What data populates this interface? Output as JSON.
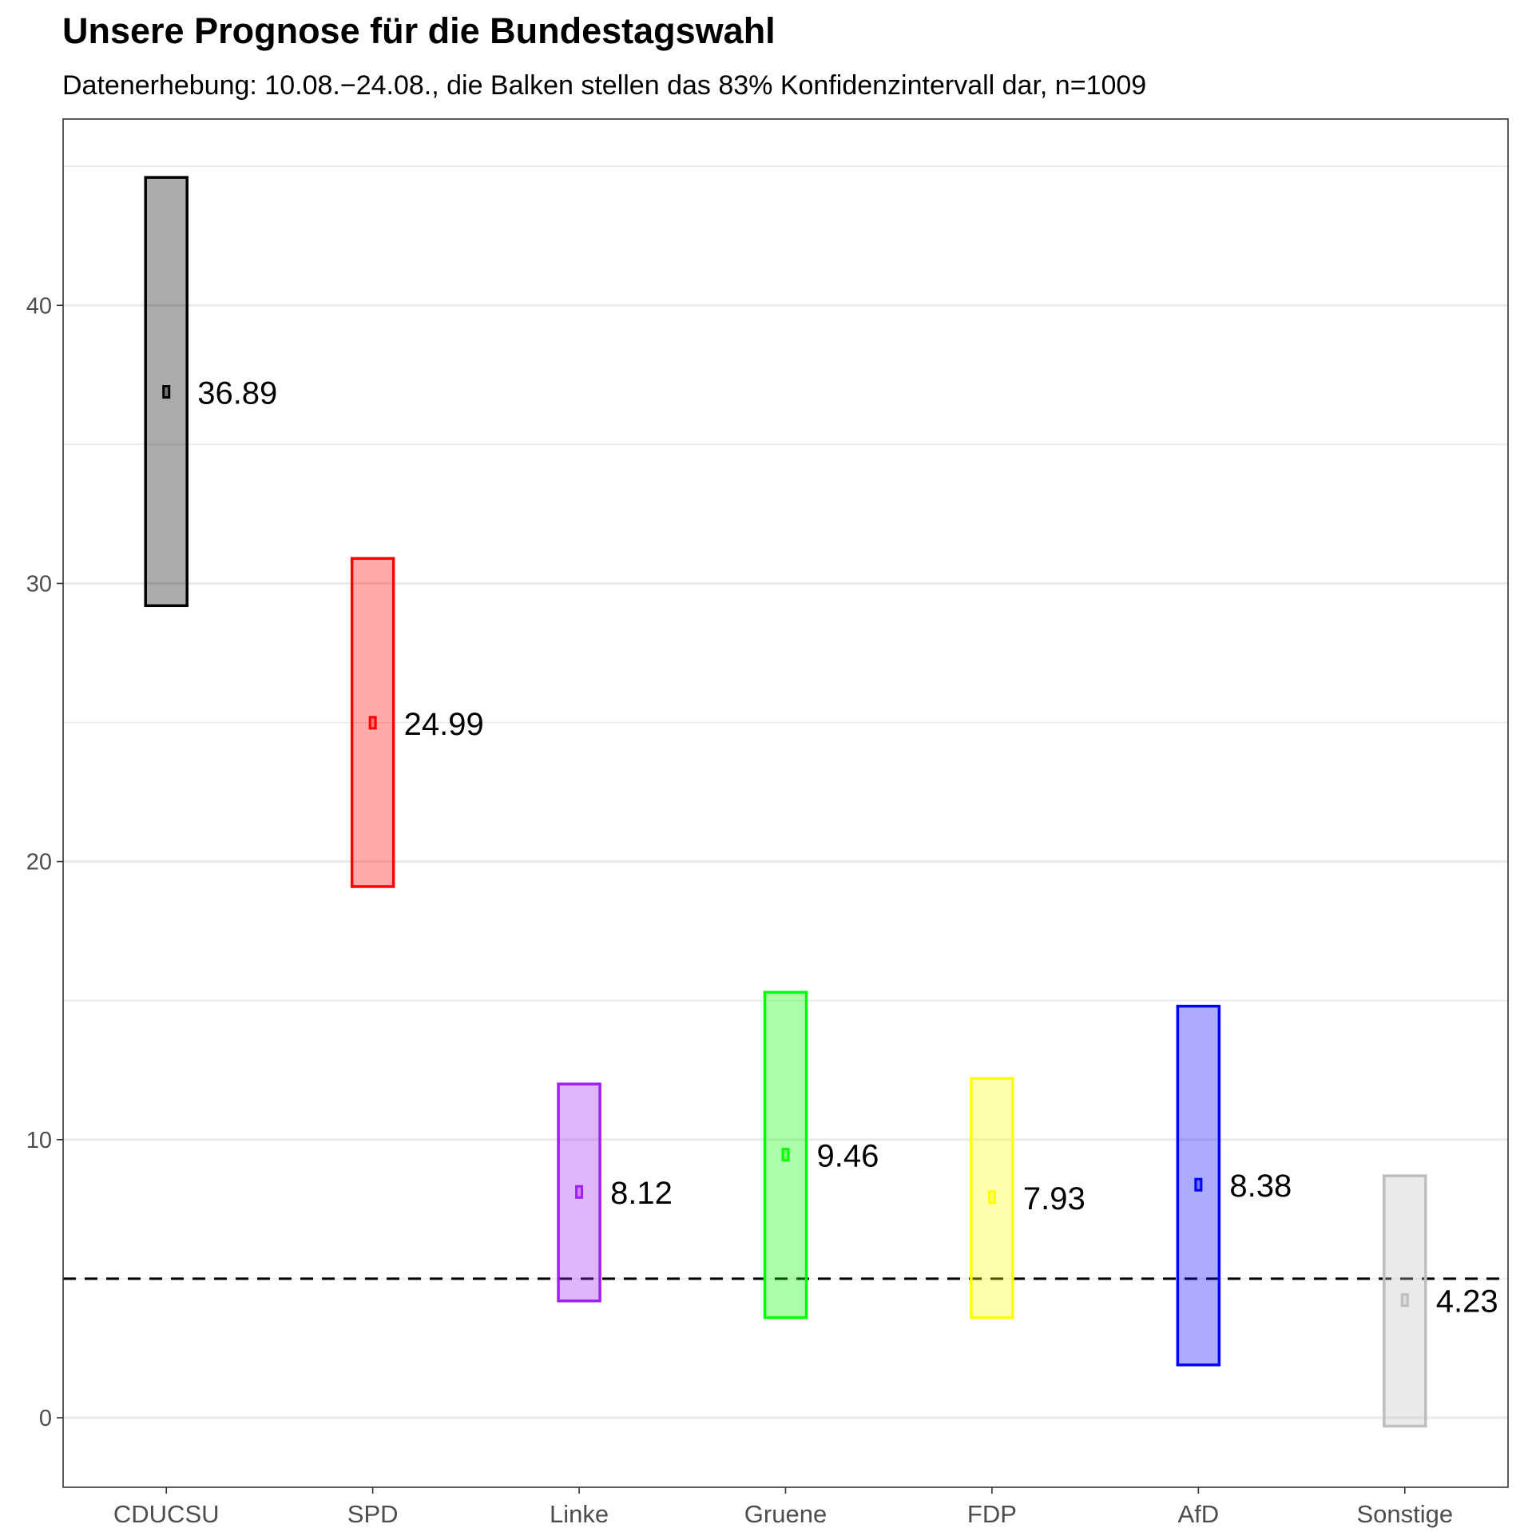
{
  "chart_data": {
    "type": "interval",
    "title": "Unsere Prognose für die Bundestagswahl",
    "subtitle": "Datenerhebung: 10.08.−24.08., die Balken stellen das 83% Konfidenzintervall dar, n=1009",
    "xlabel": "",
    "ylabel": "",
    "ylim": [
      -2.5,
      46.7
    ],
    "yticks": [
      0,
      10,
      20,
      30,
      40
    ],
    "grid": true,
    "threshold_line": 5,
    "categories": [
      "CDUCSU",
      "SPD",
      "Linke",
      "Gruene",
      "FDP",
      "AfD",
      "Sonstige"
    ],
    "values": [
      36.89,
      24.99,
      8.12,
      9.46,
      7.93,
      8.38,
      4.23
    ],
    "value_labels": [
      "36.89",
      "24.99",
      "8.12",
      "9.46",
      "7.93",
      "8.38",
      "4.23"
    ],
    "lower": [
      29.2,
      19.1,
      4.2,
      3.6,
      3.6,
      1.9,
      -0.3
    ],
    "upper": [
      44.6,
      30.9,
      12.0,
      15.3,
      12.2,
      14.8,
      8.7
    ],
    "colors": [
      "#000000",
      "#ff0000",
      "#a020f0",
      "#00ff00",
      "#ffff00",
      "#0000ff",
      "#bebebe"
    ]
  }
}
